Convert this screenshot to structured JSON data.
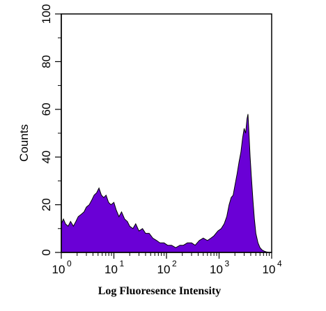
{
  "chart_data": {
    "type": "area",
    "title": "",
    "xlabel": "Log Fluoresence Intensity",
    "ylabel": "Counts",
    "x_scale": "log",
    "xlim": [
      1,
      10000
    ],
    "ylim": [
      0,
      100
    ],
    "x_ticks": [
      {
        "base": "10",
        "exp": "0"
      },
      {
        "base": "10",
        "exp": "1"
      },
      {
        "base": "10",
        "exp": "2"
      },
      {
        "base": "10",
        "exp": "3"
      },
      {
        "base": "10",
        "exp": "4"
      }
    ],
    "y_ticks": [
      0,
      20,
      40,
      60,
      80,
      100
    ],
    "grid": false,
    "fill_color": "#6a00d6",
    "line_color": "#000000",
    "series": [
      {
        "x": [
          1.0,
          1.1,
          1.2,
          1.35,
          1.5,
          1.7,
          1.9,
          2.1,
          2.4,
          2.7,
          3.0,
          3.4,
          3.8,
          4.2,
          4.7,
          5.2,
          5.8,
          6.4,
          7.1,
          7.9,
          8.8,
          10,
          11,
          12.5,
          14,
          16,
          18,
          20,
          23,
          26,
          30,
          35,
          40,
          47,
          55,
          65,
          75,
          90,
          105,
          125,
          150,
          180,
          210,
          250,
          300,
          350,
          420,
          500,
          600,
          700,
          800,
          950,
          1100,
          1250,
          1400,
          1550,
          1700,
          1850,
          2000,
          2200,
          2400,
          2600,
          2800,
          3000,
          3200,
          3400,
          3550,
          3700,
          3900,
          4100,
          4400,
          4700,
          5000,
          5500,
          6000,
          6600,
          7300,
          8000,
          9000
        ],
        "y": [
          12,
          14,
          12,
          11,
          13,
          11,
          13,
          15,
          16,
          17,
          19,
          20,
          22,
          24,
          25,
          27,
          24,
          23,
          24,
          21,
          20,
          21,
          18,
          15,
          17,
          14,
          13,
          11,
          10,
          12,
          9,
          10,
          8,
          8,
          6,
          5,
          4,
          4,
          3,
          3,
          2,
          3,
          3,
          4,
          4,
          3,
          5,
          6,
          5,
          6,
          7,
          9,
          10,
          12,
          15,
          20,
          23,
          24,
          28,
          33,
          38,
          42,
          48,
          52,
          50,
          56,
          58,
          50,
          40,
          32,
          22,
          14,
          8,
          4,
          2,
          1,
          0.5,
          0.2,
          0
        ]
      }
    ]
  }
}
